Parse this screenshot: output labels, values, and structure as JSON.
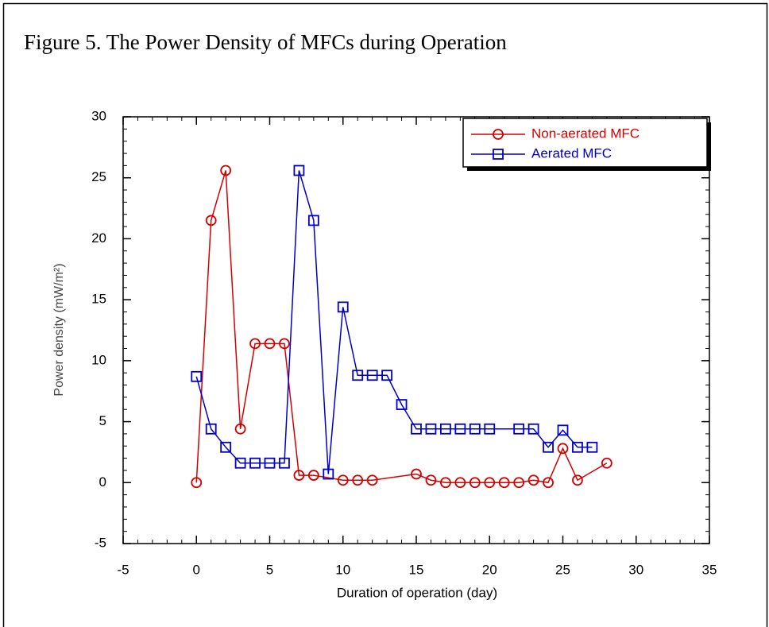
{
  "chart_data": {
    "type": "line",
    "title": "Figure 5. The Power Density of MFCs during Operation",
    "xlabel": "Duration of operation (day)",
    "ylabel": "Power density (mW/m²)",
    "xlim": [
      -5,
      35
    ],
    "xticks": [
      -5,
      0,
      5,
      10,
      15,
      20,
      25,
      30,
      35
    ],
    "ylim": [
      -5,
      30
    ],
    "yticks": [
      -5,
      0,
      5,
      10,
      15,
      20,
      25,
      30
    ],
    "legend": "upper right",
    "series": [
      {
        "name": "Non-aerated MFC",
        "color": "#d40000",
        "marker": "circle",
        "x": [
          0,
          1,
          2,
          3,
          4,
          5,
          6,
          7,
          8,
          10,
          11,
          12,
          15,
          16,
          17,
          18,
          19,
          20,
          21,
          22,
          23,
          24,
          25,
          26,
          28
        ],
        "values": [
          0,
          21.5,
          25.6,
          4.4,
          11.4,
          11.4,
          11.4,
          0.6,
          0.6,
          0.2,
          0.2,
          0.2,
          0.7,
          0.2,
          0,
          0,
          0,
          0,
          0,
          0,
          0.2,
          0,
          2.8,
          0.2,
          1.6
        ]
      },
      {
        "name": "Aerated MFC",
        "color": "#0000c8",
        "marker": "square",
        "x": [
          0,
          1,
          2,
          3,
          4,
          5,
          6,
          7,
          8,
          9,
          10,
          11,
          12,
          13,
          14,
          15,
          16,
          17,
          18,
          19,
          20,
          22,
          23,
          24,
          25,
          26,
          27
        ],
        "values": [
          8.7,
          4.4,
          2.9,
          1.6,
          1.6,
          1.6,
          1.6,
          25.6,
          21.5,
          0.7,
          14.4,
          8.8,
          8.8,
          8.8,
          6.4,
          4.4,
          4.4,
          4.4,
          4.4,
          4.4,
          4.4,
          4.4,
          4.4,
          2.9,
          4.3,
          2.9,
          2.9
        ]
      }
    ]
  }
}
